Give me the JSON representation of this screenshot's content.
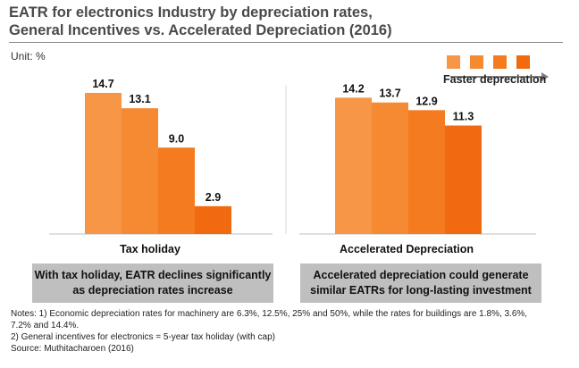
{
  "title_line1": "EATR for electronics Industry by depreciation rates,",
  "title_line2": "General Incentives vs. Accelerated Depreciation (2016)",
  "unit": "Unit: %",
  "legend": {
    "label": "Faster depreciation",
    "colors": [
      "#f79646",
      "#f58a33",
      "#f47b20",
      "#f26a10"
    ]
  },
  "chart_data": {
    "type": "bar",
    "categories": [
      "Tax holiday",
      "Accelerated Depreciation"
    ],
    "series": [
      {
        "values": [
          14.7,
          14.2
        ]
      },
      {
        "values": [
          13.1,
          13.7
        ]
      },
      {
        "values": [
          9.0,
          12.9
        ]
      },
      {
        "values": [
          2.9,
          11.3
        ]
      }
    ],
    "value_labels": [
      [
        "14.7",
        "13.1",
        "9.0",
        "2.9"
      ],
      [
        "14.2",
        "13.7",
        "12.9",
        "11.3"
      ]
    ],
    "colors": [
      "#f79646",
      "#f58a33",
      "#f47b20",
      "#f26a10"
    ],
    "ylim": [
      0,
      16
    ],
    "grid": false,
    "legend_position": "top-right"
  },
  "boxes": [
    "With tax holiday, EATR declines significantly\nas depreciation rates increase",
    "Accelerated depreciation could generate\nsimilar EATRs for long-lasting investment"
  ],
  "notes": [
    "Notes: 1) Economic depreciation rates for machinery are 6.3%, 12.5%, 25% and 50%, while the rates for buildings are 1.8%, 3.6%,\n7.2% and 14.4%.",
    "2) General incentives for electronics = 5-year tax holiday (with cap)",
    "Source: Muthitacharoen (2016)"
  ]
}
